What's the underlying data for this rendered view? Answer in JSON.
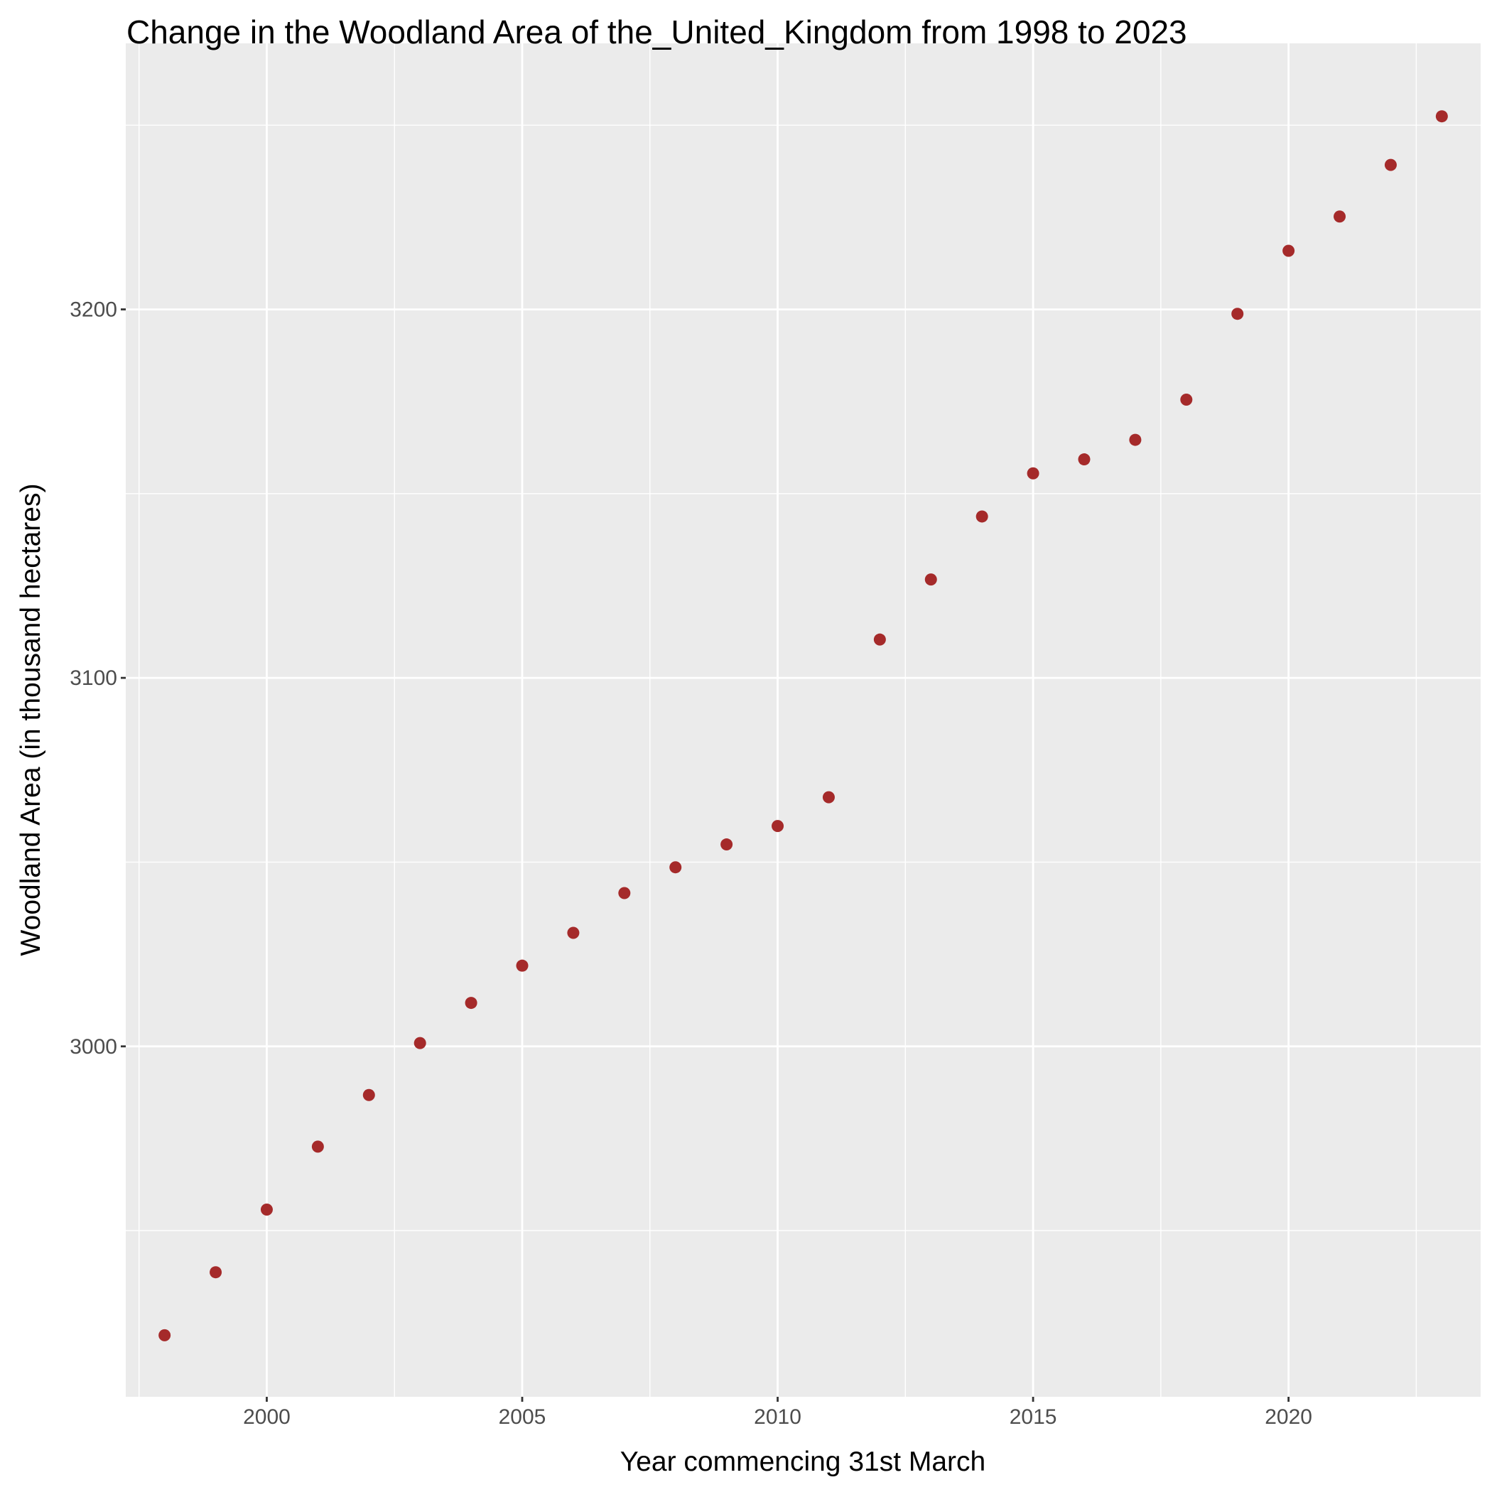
{
  "chart_data": {
    "type": "scatter",
    "title": "Change in the Woodland Area of the_United_Kingdom from 1998 to 2023",
    "xlabel": "Year commencing 31st March",
    "ylabel": "Woodland Area (in thousand hectares)",
    "x_ticks": [
      2000,
      2005,
      2010,
      2015,
      2020
    ],
    "y_ticks": [
      3000,
      3100,
      3200
    ],
    "xlim": [
      1997.24,
      2023.76
    ],
    "ylim": [
      2904.9,
      3272.2
    ],
    "grid": true,
    "legend": "none",
    "point_color": "#a52a2a",
    "panel_color": "#ebebeb",
    "grid_color": "#ffffff",
    "x": [
      1998,
      1999,
      2000,
      2001,
      2002,
      2003,
      2004,
      2005,
      2006,
      2007,
      2008,
      2009,
      2010,
      2011,
      2012,
      2013,
      2014,
      2015,
      2016,
      2017,
      2018,
      2019,
      2020,
      2021,
      2022,
      2023
    ],
    "y": [
      2921.6,
      2938.7,
      2955.7,
      2972.8,
      2986.8,
      3000.9,
      3011.8,
      3021.9,
      3030.8,
      3041.6,
      3048.6,
      3054.8,
      3059.8,
      3067.6,
      3110.4,
      3126.7,
      3143.8,
      3155.5,
      3159.3,
      3164.6,
      3175.5,
      3198.8,
      3215.9,
      3225.2,
      3239.2,
      3252.4
    ]
  }
}
